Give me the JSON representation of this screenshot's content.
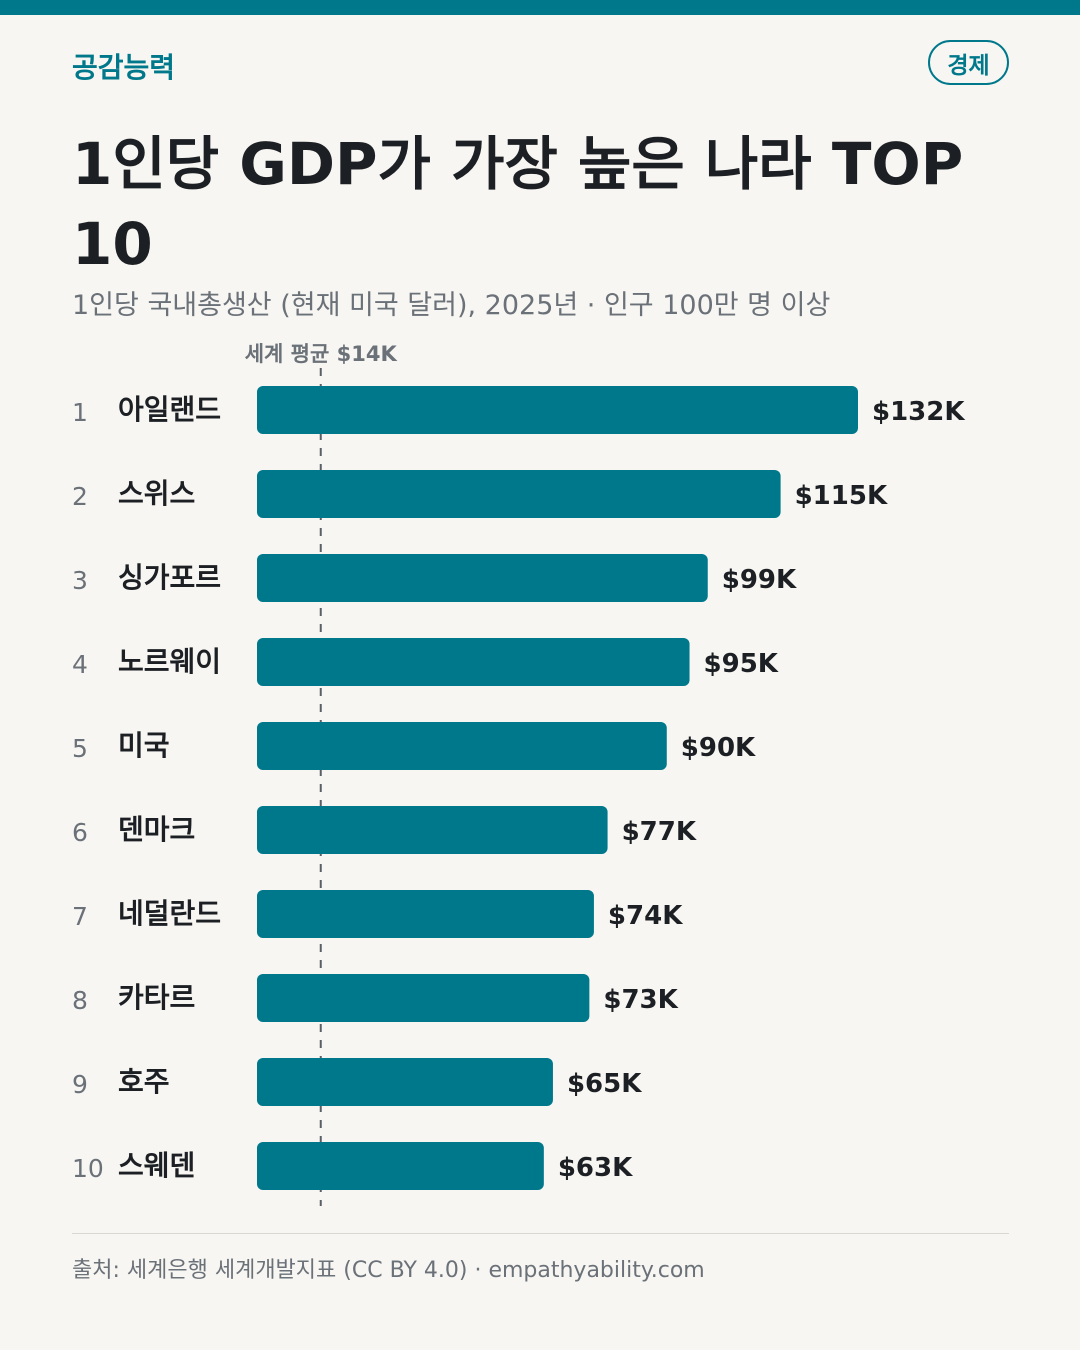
{
  "brand": "공감능력",
  "category": "경제",
  "footer": {
    "source": "출처: 세계은행 세계개발지표 (CC BY 4.0) · empathyability.com"
  },
  "colors": {
    "accent": "#00788b",
    "background": "#f7f6f2",
    "text": "#1c1f23",
    "muted": "#6b7178"
  },
  "chart_data": {
    "type": "bar",
    "orientation": "horizontal",
    "title": "1인당 GDP가 가장 높은 나라 TOP 10",
    "subtitle": "1인당 국내총생산 (현재 미국 달러), 2025년 · 인구 100만 명 이상",
    "ranks": [
      "1",
      "2",
      "3",
      "4",
      "5",
      "6",
      "7",
      "8",
      "9",
      "10"
    ],
    "categories": [
      "아일랜드",
      "스위스",
      "싱가포르",
      "노르웨이",
      "미국",
      "덴마크",
      "네덜란드",
      "카타르",
      "호주",
      "스웨덴"
    ],
    "values": [
      132,
      115,
      99,
      95,
      90,
      77,
      74,
      73,
      65,
      63
    ],
    "value_labels": [
      "$132K",
      "$115K",
      "$99K",
      "$95K",
      "$90K",
      "$77K",
      "$74K",
      "$73K",
      "$65K",
      "$63K"
    ],
    "unit": "thousand USD",
    "reference_line": {
      "label": "세계 평균 $14K",
      "value": 14
    },
    "xlim": [
      0,
      132
    ],
    "grid": false,
    "legend": "none"
  }
}
